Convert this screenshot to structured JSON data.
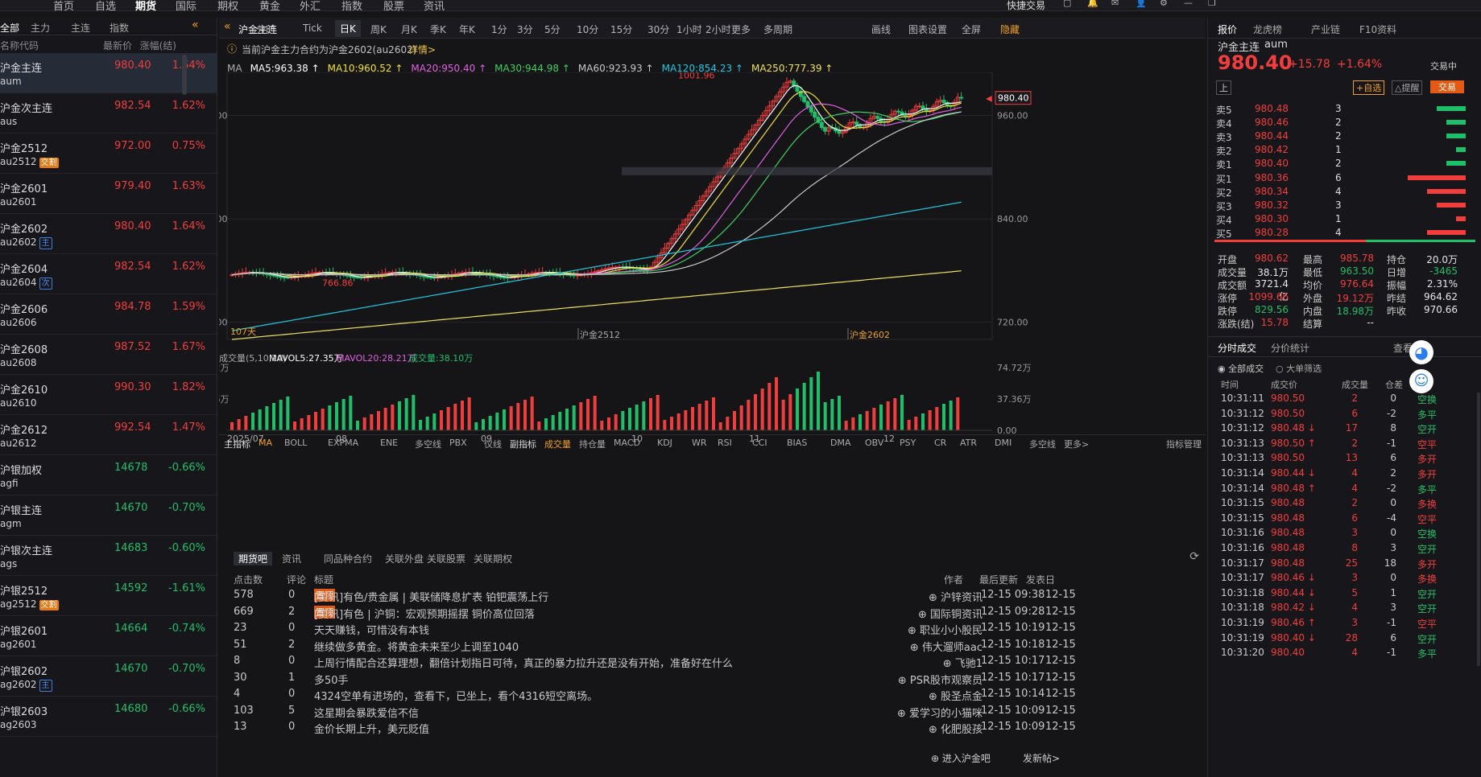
{
  "topnav": {
    "items": [
      "首页",
      "自选",
      "期货",
      "国际",
      "期权",
      "黄金",
      "外汇",
      "指数",
      "股票",
      "资讯"
    ],
    "quick_trade": "快捷交易"
  },
  "left": {
    "tabs": [
      "全部",
      "主力",
      "主连",
      "指数"
    ],
    "headers": {
      "code": "名称代码",
      "price": "最新价",
      "pct": "涨幅(结)"
    },
    "rows": [
      {
        "name": "沪金主连",
        "code": "aum",
        "price": "980.40",
        "pct": "1.64%",
        "dir": "up",
        "tag": ""
      },
      {
        "name": "沪金次主连",
        "code": "aus",
        "price": "982.54",
        "pct": "1.62%",
        "dir": "up",
        "tag": ""
      },
      {
        "name": "沪金2512",
        "code": "au2512",
        "price": "972.00",
        "pct": "0.75%",
        "dir": "up",
        "tag": "交割"
      },
      {
        "name": "沪金2601",
        "code": "au2601",
        "price": "979.40",
        "pct": "1.63%",
        "dir": "up",
        "tag": ""
      },
      {
        "name": "沪金2602",
        "code": "au2602",
        "price": "980.40",
        "pct": "1.64%",
        "dir": "up",
        "tag": "主"
      },
      {
        "name": "沪金2604",
        "code": "au2604",
        "price": "982.54",
        "pct": "1.62%",
        "dir": "up",
        "tag": "次"
      },
      {
        "name": "沪金2606",
        "code": "au2606",
        "price": "984.78",
        "pct": "1.59%",
        "dir": "up",
        "tag": ""
      },
      {
        "name": "沪金2608",
        "code": "au2608",
        "price": "987.52",
        "pct": "1.67%",
        "dir": "up",
        "tag": ""
      },
      {
        "name": "沪金2610",
        "code": "au2610",
        "price": "990.30",
        "pct": "1.82%",
        "dir": "up",
        "tag": ""
      },
      {
        "name": "沪金2612",
        "code": "au2612",
        "price": "992.54",
        "pct": "1.47%",
        "dir": "up",
        "tag": ""
      },
      {
        "name": "沪银加权",
        "code": "agfi",
        "price": "14678",
        "pct": "-0.66%",
        "dir": "down",
        "tag": ""
      },
      {
        "name": "沪银主连",
        "code": "agm",
        "price": "14670",
        "pct": "-0.70%",
        "dir": "down",
        "tag": ""
      },
      {
        "name": "沪银次主连",
        "code": "ags",
        "price": "14683",
        "pct": "-0.60%",
        "dir": "down",
        "tag": ""
      },
      {
        "name": "沪银2512",
        "code": "ag2512",
        "price": "14592",
        "pct": "-1.61%",
        "dir": "down",
        "tag": "交割"
      },
      {
        "name": "沪银2601",
        "code": "ag2601",
        "price": "14664",
        "pct": "-0.74%",
        "dir": "down",
        "tag": ""
      },
      {
        "name": "沪银2602",
        "code": "ag2602",
        "price": "14670",
        "pct": "-0.70%",
        "dir": "down",
        "tag": "主"
      },
      {
        "name": "沪银2603",
        "code": "ag2603",
        "price": "14680",
        "pct": "-0.66%",
        "dir": "down",
        "tag": ""
      }
    ]
  },
  "toolbar": {
    "symbol": "沪金主连",
    "periods": [
      "分时",
      "Tick",
      "日K",
      "周K",
      "月K",
      "季K",
      "年K",
      "1分",
      "3分",
      "5分",
      "10分",
      "15分",
      "30分",
      "1小时",
      "2小时",
      "更多",
      "多周期"
    ],
    "tools": [
      "画线",
      "图表设置",
      "全屏",
      "隐藏"
    ]
  },
  "notice": {
    "text": "当前沪金主力合约为沪金2602(au2602)",
    "link": "详情>"
  },
  "ma": {
    "label": "MA",
    "items": [
      {
        "t": "MA5:963.38 ↑",
        "c": "#ffffff"
      },
      {
        "t": "MA10:960.52 ↑",
        "c": "#f2e030"
      },
      {
        "t": "MA20:950.40 ↑",
        "c": "#e060e0"
      },
      {
        "t": "MA30:944.98 ↑",
        "c": "#40d060"
      },
      {
        "t": "MA60:923.93 ↑",
        "c": "#c8c8c8"
      },
      {
        "t": "MA120:854.23 ↑",
        "c": "#20c8e0"
      },
      {
        "t": "MA250:777.39 ↑",
        "c": "#f0e060"
      }
    ]
  },
  "chart_data": {
    "type": "candlestick",
    "yticks": [
      "960.00",
      "840.00",
      "720.00"
    ],
    "high_label": "1001.96",
    "low_label": "766.86",
    "last_price": "980.40",
    "bars_label": "107天",
    "contract_marks": [
      "沪金2512",
      "沪金2602"
    ],
    "x_ticks": [
      "2025/07",
      "08",
      "09",
      "10",
      "11",
      "12"
    ],
    "volume": {
      "label": "成交量(5,10,20)",
      "mavol5": "MAVOL5:27.35万",
      "mavol20": "MAVOL20:28.21万",
      "vol": "成交量:38.10万",
      "yticks": [
        "74.72万",
        "37.36万",
        "0.00"
      ]
    }
  },
  "indicators": [
    "主指标",
    "MA",
    "BOLL",
    "EXPMA",
    "ENE",
    "多空线",
    "PBX",
    "仪线",
    "副指标",
    "成交量",
    "持仓量",
    "MACD",
    "KDJ",
    "WR",
    "RSI",
    "CCI",
    "BIAS",
    "DMA",
    "OBV",
    "PSY",
    "CR",
    "ATR",
    "DMI",
    "多空线",
    "更多>",
    "指标管理"
  ],
  "news": {
    "tabs": [
      "期货吧",
      "资讯",
      "同品种合约",
      "关联外盘",
      "关联股票",
      "关联期权"
    ],
    "headers": [
      "点击数",
      "评论",
      "标题",
      "作者",
      "最后更新",
      "发表日"
    ],
    "rows": [
      {
        "clicks": "578",
        "comments": "0",
        "hot": "置顶",
        "title": "[资讯]有色/贵金属 | 美联储降息扩表 铂钯震荡上行",
        "author": "沪锌资讯",
        "updated": "12-15 09:38",
        "date": "12-15"
      },
      {
        "clicks": "669",
        "comments": "2",
        "hot": "置顶",
        "title": "[资讯]有色 | 沪铜：宏观预期摇摆 铜价高位回落",
        "author": "国际铜资讯",
        "updated": "12-15 09:28",
        "date": "12-15"
      },
      {
        "clicks": "23",
        "comments": "0",
        "hot": "",
        "title": "天天赚钱，可惜没有本钱",
        "author": "职业小小股民",
        "updated": "12-15 10:19",
        "date": "12-15"
      },
      {
        "clicks": "51",
        "comments": "2",
        "hot": "",
        "title": "继续做多黄金。将黄金未来至少上调至1040",
        "author": "伟大遛师aac",
        "updated": "12-15 10:18",
        "date": "12-15"
      },
      {
        "clicks": "8",
        "comments": "0",
        "hot": "",
        "title": "上周行情配合还算理想，翻倍计划指日可待，真正的暴力拉升还是没有开始，准备好在什么",
        "author": "飞驰1",
        "updated": "12-15 10:17",
        "date": "12-15"
      },
      {
        "clicks": "30",
        "comments": "1",
        "hot": "",
        "title": "多50手",
        "author": "PSR股市观察员",
        "updated": "12-15 10:17",
        "date": "12-15"
      },
      {
        "clicks": "4",
        "comments": "0",
        "hot": "",
        "title": "4324空单有进场的，查看下，已坐上，看个4316短空离场。",
        "author": "股圣点金",
        "updated": "12-15 10:14",
        "date": "12-15"
      },
      {
        "clicks": "103",
        "comments": "5",
        "hot": "",
        "title": "这星期会暴跌爱信不信",
        "author": "爱学习的小猫咪",
        "updated": "12-15 10:09",
        "date": "12-15"
      },
      {
        "clicks": "13",
        "comments": "0",
        "hot": "",
        "title": "金价长期上升，美元贬值",
        "author": "化肥股孩",
        "updated": "12-15 10:09",
        "date": "12-15"
      }
    ],
    "enter": "进入沪金吧",
    "post": "发新帖>"
  },
  "right": {
    "tabs": [
      "报价",
      "龙虎榜",
      "产业链",
      "F10资料"
    ],
    "name": "沪金主连",
    "code": "aum",
    "price": "980.40",
    "chg": "+15.78",
    "pct": "+1.64%",
    "trade": "交易中",
    "buttons": [
      "自选",
      "提醒",
      "交易"
    ],
    "asks": [
      {
        "l": "卖5",
        "p": "980.48",
        "v": "3",
        "w": 60
      },
      {
        "l": "卖4",
        "p": "980.46",
        "v": "2",
        "w": 40
      },
      {
        "l": "卖3",
        "p": "980.44",
        "v": "2",
        "w": 40
      },
      {
        "l": "卖2",
        "p": "980.42",
        "v": "1",
        "w": 20
      },
      {
        "l": "卖1",
        "p": "980.40",
        "v": "2",
        "w": 40
      }
    ],
    "bids": [
      {
        "l": "买1",
        "p": "980.36",
        "v": "6",
        "w": 120
      },
      {
        "l": "买2",
        "p": "980.34",
        "v": "4",
        "w": 80
      },
      {
        "l": "买3",
        "p": "980.32",
        "v": "3",
        "w": 60
      },
      {
        "l": "买4",
        "p": "980.30",
        "v": "1",
        "w": 20
      },
      {
        "l": "买5",
        "p": "980.28",
        "v": "4",
        "w": 80
      }
    ],
    "stats": [
      [
        "开盘",
        "980.62",
        "r",
        "最高",
        "985.78",
        "r",
        "持仓",
        "20.0万",
        "w"
      ],
      [
        "成交量",
        "38.1万",
        "w",
        "最低",
        "963.50",
        "g",
        "日增",
        "-3465",
        "g"
      ],
      [
        "成交额",
        "3721.4亿",
        "w",
        "均价",
        "976.64",
        "r",
        "振幅",
        "2.31%",
        "w"
      ],
      [
        "涨停",
        "1099.66",
        "r",
        "外盘",
        "19.12万",
        "r",
        "昨结",
        "964.62",
        "w"
      ],
      [
        "跌停",
        "829.56",
        "g",
        "内盘",
        "18.98万",
        "g",
        "昨收",
        "970.66",
        "w"
      ],
      [
        "涨跌(结)",
        "15.78",
        "r",
        "结算",
        "--",
        "w",
        "",
        "",
        " "
      ]
    ],
    "ticks_tabs": [
      "分时成交",
      "分价统计",
      "查看"
    ],
    "filters": [
      "全部成交",
      "大单筛选"
    ],
    "tick_headers": [
      "时间",
      "成交价",
      "成交量",
      "仓差",
      ""
    ],
    "ticks": [
      [
        "10:31:11",
        "980.50",
        "",
        "2",
        "0",
        "空换",
        "g"
      ],
      [
        "10:31:12",
        "980.50",
        "",
        "6",
        "-2",
        "多平",
        "g"
      ],
      [
        "10:31:12",
        "980.48",
        "↓",
        "17",
        "8",
        "空开",
        "g"
      ],
      [
        "10:31:13",
        "980.50",
        "↑",
        "2",
        "-1",
        "空平",
        "r"
      ],
      [
        "10:31:13",
        "980.50",
        "",
        "13",
        "6",
        "多开",
        "r"
      ],
      [
        "10:31:14",
        "980.44",
        "↓",
        "4",
        "2",
        "多开",
        "r"
      ],
      [
        "10:31:14",
        "980.48",
        "↑",
        "4",
        "-2",
        "多平",
        "g"
      ],
      [
        "10:31:15",
        "980.48",
        "",
        "2",
        "0",
        "多换",
        "r"
      ],
      [
        "10:31:15",
        "980.48",
        "",
        "6",
        "-4",
        "空平",
        "r"
      ],
      [
        "10:31:16",
        "980.48",
        "",
        "3",
        "0",
        "空换",
        "g"
      ],
      [
        "10:31:16",
        "980.48",
        "",
        "8",
        "3",
        "空开",
        "g"
      ],
      [
        "10:31:17",
        "980.48",
        "",
        "25",
        "18",
        "多开",
        "r"
      ],
      [
        "10:31:17",
        "980.46",
        "↓",
        "3",
        "0",
        "多换",
        "r"
      ],
      [
        "10:31:18",
        "980.44",
        "↓",
        "5",
        "1",
        "空开",
        "g"
      ],
      [
        "10:31:18",
        "980.42",
        "↓",
        "4",
        "3",
        "空开",
        "g"
      ],
      [
        "10:31:19",
        "980.46",
        "↑",
        "3",
        "-1",
        "空平",
        "r"
      ],
      [
        "10:31:19",
        "980.40",
        "↓",
        "28",
        "6",
        "空开",
        "g"
      ],
      [
        "10:31:20",
        "980.40",
        "",
        "4",
        "-1",
        "多平",
        "g"
      ]
    ]
  }
}
